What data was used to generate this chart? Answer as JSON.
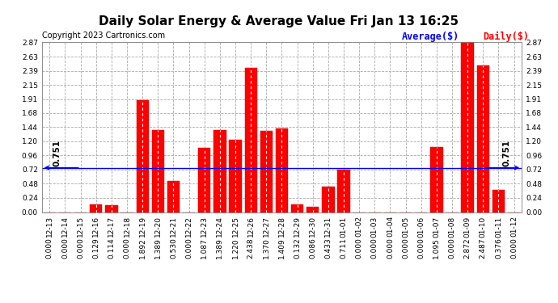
{
  "title": "Daily Solar Energy & Average Value Fri Jan 13 16:25",
  "copyright": "Copyright 2023 Cartronics.com",
  "legend_avg": "Average($)",
  "legend_daily": "Daily($)",
  "average_value": 0.751,
  "categories": [
    "12-13",
    "12-14",
    "12-15",
    "12-16",
    "12-17",
    "12-18",
    "12-19",
    "12-20",
    "12-21",
    "12-22",
    "12-23",
    "12-24",
    "12-25",
    "12-26",
    "12-27",
    "12-28",
    "12-29",
    "12-30",
    "12-31",
    "01-01",
    "01-02",
    "01-03",
    "01-04",
    "01-05",
    "01-06",
    "01-07",
    "01-08",
    "01-09",
    "01-10",
    "01-11",
    "01-12"
  ],
  "values": [
    0.0,
    0.0,
    0.0,
    0.129,
    0.114,
    0.0,
    1.892,
    1.389,
    0.53,
    0.0,
    1.087,
    1.389,
    1.22,
    2.438,
    1.37,
    1.409,
    0.132,
    0.086,
    0.433,
    0.711,
    0.0,
    0.0,
    0.0,
    0.0,
    0.0,
    1.095,
    0.0,
    2.872,
    2.487,
    0.376,
    0.0
  ],
  "bar_color": "#ff0000",
  "bar_edge_color": "#bb0000",
  "avg_line_color": "#0000ff",
  "background_color": "#ffffff",
  "grid_color": "#aaaaaa",
  "ylim": [
    0.0,
    2.87
  ],
  "yticks": [
    0.0,
    0.24,
    0.48,
    0.72,
    0.96,
    1.2,
    1.44,
    1.68,
    1.91,
    2.15,
    2.39,
    2.63,
    2.87
  ],
  "title_fontsize": 11,
  "tick_fontsize": 6.5,
  "label_fontsize": 6.5,
  "avg_label_fontsize": 7.5,
  "copyright_fontsize": 7,
  "legend_fontsize": 8.5
}
